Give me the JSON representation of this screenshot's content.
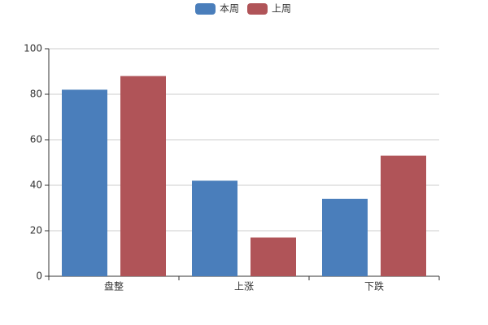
{
  "chart_data": {
    "type": "bar",
    "categories": [
      "盘整",
      "上涨",
      "下跌"
    ],
    "series": [
      {
        "name": "本周",
        "color": "#4a7ebb",
        "values": [
          82,
          42,
          34
        ]
      },
      {
        "name": "上周",
        "color": "#b05458",
        "values": [
          88,
          17,
          53
        ]
      }
    ],
    "ylim": [
      0,
      100
    ],
    "yticks": [
      0,
      20,
      40,
      60,
      80,
      100
    ],
    "grid": true,
    "legend": "top"
  }
}
